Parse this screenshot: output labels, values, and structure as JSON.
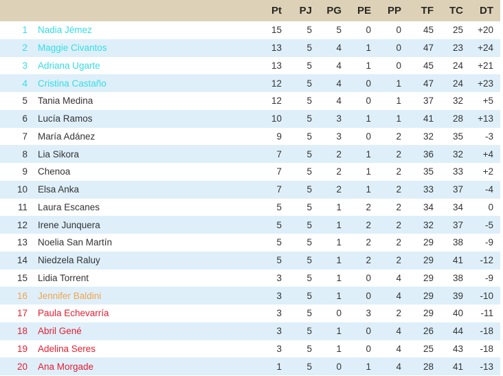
{
  "table": {
    "columns": [
      "Pt",
      "PJ",
      "PG",
      "PE",
      "PP",
      "TF",
      "TC",
      "DT"
    ],
    "colors": {
      "header_bg": "#ddd2b8",
      "header_text": "#2a2722",
      "stripe_blue": "#deeffa",
      "row_white": "#ffffff",
      "text_dark": "#333333",
      "qualified": "#33dde6",
      "warning": "#f0a44c",
      "relegated": "#e51d30"
    },
    "rows": [
      {
        "rank": "1",
        "name": "Nadia Jémez",
        "zone": "qualified",
        "values": [
          "15",
          "5",
          "5",
          "0",
          "0",
          "45",
          "25",
          "+20"
        ]
      },
      {
        "rank": "2",
        "name": "Maggie Civantos",
        "zone": "qualified",
        "values": [
          "13",
          "5",
          "4",
          "1",
          "0",
          "47",
          "23",
          "+24"
        ]
      },
      {
        "rank": "3",
        "name": "Adriana Ugarte",
        "zone": "qualified",
        "values": [
          "13",
          "5",
          "4",
          "1",
          "0",
          "45",
          "24",
          "+21"
        ]
      },
      {
        "rank": "4",
        "name": "Cristina Castaño",
        "zone": "qualified",
        "values": [
          "12",
          "5",
          "4",
          "0",
          "1",
          "47",
          "24",
          "+23"
        ]
      },
      {
        "rank": "5",
        "name": "Tania Medina",
        "zone": "normal",
        "values": [
          "12",
          "5",
          "4",
          "0",
          "1",
          "37",
          "32",
          "+5"
        ]
      },
      {
        "rank": "6",
        "name": "Lucía Ramos",
        "zone": "normal",
        "values": [
          "10",
          "5",
          "3",
          "1",
          "1",
          "41",
          "28",
          "+13"
        ]
      },
      {
        "rank": "7",
        "name": "María Adánez",
        "zone": "normal",
        "values": [
          "9",
          "5",
          "3",
          "0",
          "2",
          "32",
          "35",
          "-3"
        ]
      },
      {
        "rank": "8",
        "name": "Lia Sikora",
        "zone": "normal",
        "values": [
          "7",
          "5",
          "2",
          "1",
          "2",
          "36",
          "32",
          "+4"
        ]
      },
      {
        "rank": "9",
        "name": "Chenoa",
        "zone": "normal",
        "values": [
          "7",
          "5",
          "2",
          "1",
          "2",
          "35",
          "33",
          "+2"
        ]
      },
      {
        "rank": "10",
        "name": "Elsa Anka",
        "zone": "normal",
        "values": [
          "7",
          "5",
          "2",
          "1",
          "2",
          "33",
          "37",
          "-4"
        ]
      },
      {
        "rank": "11",
        "name": "Laura Escanes",
        "zone": "normal",
        "values": [
          "5",
          "5",
          "1",
          "2",
          "2",
          "34",
          "34",
          "0"
        ]
      },
      {
        "rank": "12",
        "name": "Irene Junquera",
        "zone": "normal",
        "values": [
          "5",
          "5",
          "1",
          "2",
          "2",
          "32",
          "37",
          "-5"
        ]
      },
      {
        "rank": "13",
        "name": "Noelia San Martín",
        "zone": "normal",
        "values": [
          "5",
          "5",
          "1",
          "2",
          "2",
          "29",
          "38",
          "-9"
        ]
      },
      {
        "rank": "14",
        "name": "Niedzela Raluy",
        "zone": "normal",
        "values": [
          "5",
          "5",
          "1",
          "2",
          "2",
          "29",
          "41",
          "-12"
        ]
      },
      {
        "rank": "15",
        "name": "Lidia Torrent",
        "zone": "normal",
        "values": [
          "3",
          "5",
          "1",
          "0",
          "4",
          "29",
          "38",
          "-9"
        ]
      },
      {
        "rank": "16",
        "name": "Jennifer Baldini",
        "zone": "warning",
        "values": [
          "3",
          "5",
          "1",
          "0",
          "4",
          "29",
          "39",
          "-10"
        ]
      },
      {
        "rank": "17",
        "name": "Paula Echevarría",
        "zone": "relegated",
        "values": [
          "3",
          "5",
          "0",
          "3",
          "2",
          "29",
          "40",
          "-11"
        ]
      },
      {
        "rank": "18",
        "name": "Abril Gené",
        "zone": "relegated",
        "values": [
          "3",
          "5",
          "1",
          "0",
          "4",
          "26",
          "44",
          "-18"
        ]
      },
      {
        "rank": "19",
        "name": "Adelina Seres",
        "zone": "relegated",
        "values": [
          "3",
          "5",
          "1",
          "0",
          "4",
          "25",
          "43",
          "-18"
        ]
      },
      {
        "rank": "20",
        "name": "Ana Morgade",
        "zone": "relegated",
        "values": [
          "1",
          "5",
          "0",
          "1",
          "4",
          "28",
          "41",
          "-13"
        ]
      }
    ]
  }
}
